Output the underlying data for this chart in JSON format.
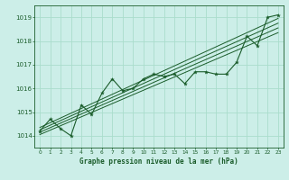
{
  "title": "Graphe pression niveau de la mer (hPa)",
  "bg_color": "#cceee8",
  "grid_color": "#aaddcc",
  "line_color": "#1a5c2a",
  "xlim": [
    -0.5,
    23.5
  ],
  "ylim": [
    1013.5,
    1019.5
  ],
  "yticks": [
    1014,
    1015,
    1016,
    1017,
    1018,
    1019
  ],
  "xticks": [
    0,
    1,
    2,
    3,
    4,
    5,
    6,
    7,
    8,
    9,
    10,
    11,
    12,
    13,
    14,
    15,
    16,
    17,
    18,
    19,
    20,
    21,
    22,
    23
  ],
  "pressure_data": [
    1014.2,
    1014.7,
    1014.3,
    1014.0,
    1015.3,
    1014.9,
    1015.8,
    1016.4,
    1015.9,
    1016.0,
    1016.4,
    1016.6,
    1016.5,
    1016.6,
    1016.2,
    1016.7,
    1016.7,
    1016.6,
    1016.6,
    1017.1,
    1018.2,
    1017.8,
    1019.0,
    1019.1
  ],
  "trend_lines": [
    [
      1014.05,
      1018.35
    ],
    [
      1014.15,
      1018.55
    ],
    [
      1014.25,
      1018.75
    ],
    [
      1014.35,
      1018.95
    ]
  ],
  "figwidth": 3.2,
  "figheight": 2.0,
  "dpi": 100
}
